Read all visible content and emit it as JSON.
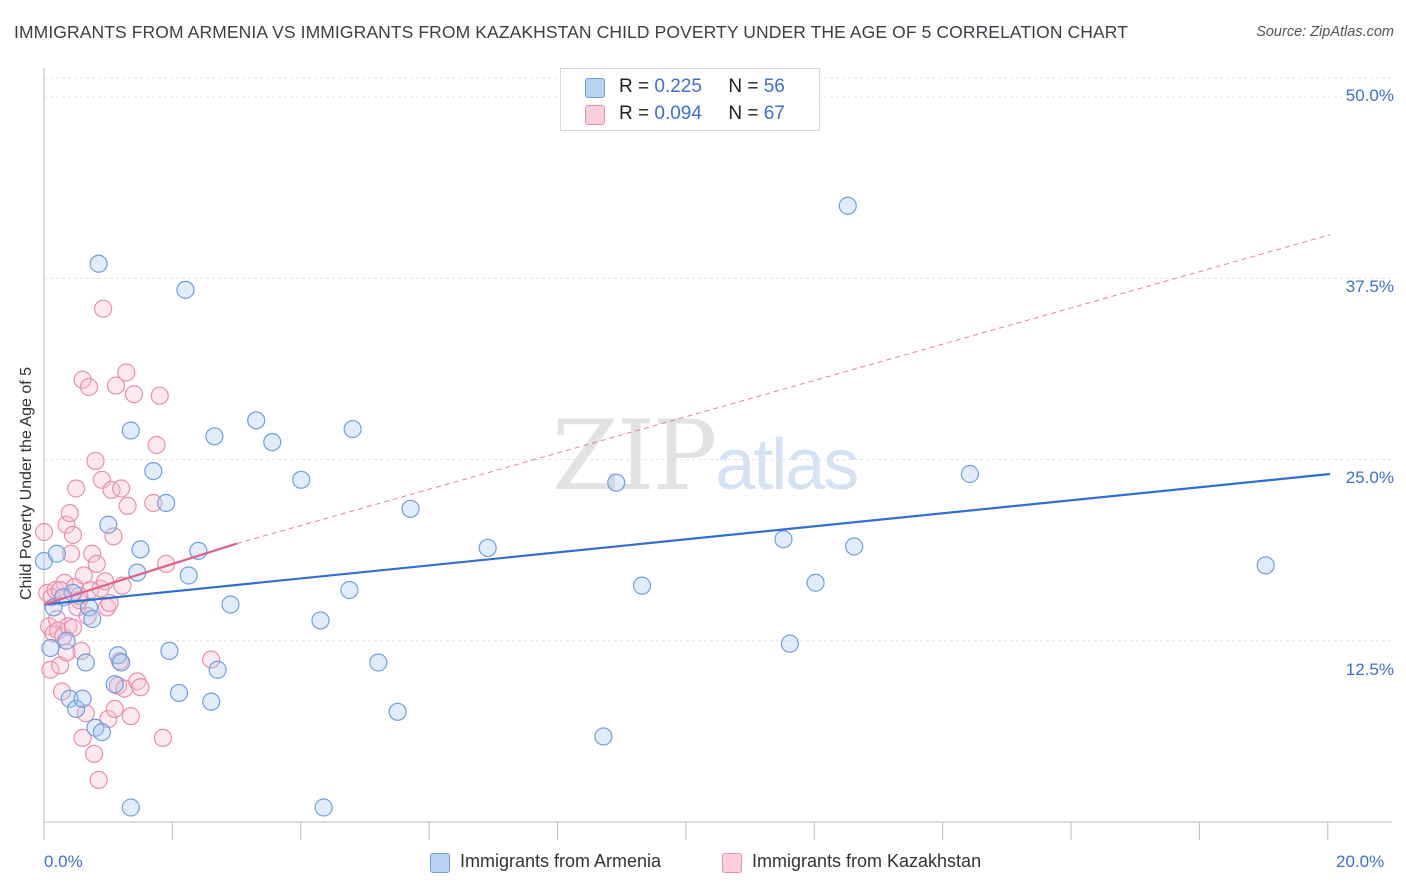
{
  "title": "IMMIGRANTS FROM ARMENIA VS IMMIGRANTS FROM KAZAKHSTAN CHILD POVERTY UNDER THE AGE OF 5 CORRELATION CHART",
  "source": "Source: ZipAtlas.com",
  "watermark": {
    "zip": "ZIP",
    "atlas": "atlas"
  },
  "legend": {
    "r_label": "R =",
    "n_label": "N =",
    "armenia": {
      "r": "0.225",
      "n": "56"
    },
    "kazakhstan": {
      "r": "0.094",
      "n": "67"
    }
  },
  "bottom_legend": {
    "armenia": "Immigrants from Armenia",
    "kazakhstan": "Immigrants from Kazakhstan"
  },
  "colors": {
    "armenia_fill": "#a9c8f0",
    "armenia_stroke": "#6f9fe0",
    "armenia_line": "#2f6fce",
    "kazakhstan_fill": "#f6bfd0",
    "kazakhstan_stroke": "#ea8fab",
    "kazakhstan_line": "#e0608a",
    "tick_text": "#3d6fd1",
    "grid": "#e4e4e4"
  },
  "chart_data": {
    "type": "scatter",
    "title": "IMMIGRANTS FROM ARMENIA VS IMMIGRANTS FROM KAZAKHSTAN CHILD POVERTY UNDER THE AGE OF 5 CORRELATION CHART",
    "xlabel": "",
    "ylabel": "Child Poverty Under the Age of 5",
    "xlim": [
      0,
      20
    ],
    "ylim": [
      0,
      52
    ],
    "x_tick_labels": [
      "0.0%",
      "20.0%"
    ],
    "y_ticks": [
      12.5,
      25.0,
      37.5,
      50.0
    ],
    "y_tick_labels": [
      "12.5%",
      "25.0%",
      "37.5%",
      "50.0%"
    ],
    "series": [
      {
        "name": "Immigrants from Armenia",
        "r": 0.225,
        "n": 56,
        "trend": {
          "x0": 0,
          "y0": 15.0,
          "x1": 20,
          "y1": 24.0
        },
        "points": [
          [
            0.0,
            18.0
          ],
          [
            0.15,
            14.8
          ],
          [
            0.2,
            18.5
          ],
          [
            0.1,
            12.0
          ],
          [
            0.35,
            12.5
          ],
          [
            0.4,
            8.5
          ],
          [
            0.45,
            15.8
          ],
          [
            0.5,
            7.8
          ],
          [
            0.6,
            8.5
          ],
          [
            0.65,
            11.0
          ],
          [
            0.7,
            14.8
          ],
          [
            0.75,
            14.0
          ],
          [
            0.8,
            6.5
          ],
          [
            0.85,
            38.5
          ],
          [
            0.9,
            6.2
          ],
          [
            1.0,
            20.5
          ],
          [
            1.1,
            9.5
          ],
          [
            1.15,
            11.5
          ],
          [
            1.2,
            11.0
          ],
          [
            1.35,
            27.0
          ],
          [
            1.45,
            17.2
          ],
          [
            1.5,
            18.8
          ],
          [
            1.7,
            24.2
          ],
          [
            1.9,
            22.0
          ],
          [
            1.95,
            11.8
          ],
          [
            2.1,
            8.9
          ],
          [
            2.2,
            36.7
          ],
          [
            2.25,
            17.0
          ],
          [
            2.4,
            18.7
          ],
          [
            2.6,
            8.3
          ],
          [
            2.65,
            26.6
          ],
          [
            2.7,
            10.5
          ],
          [
            2.9,
            15.0
          ],
          [
            3.3,
            27.7
          ],
          [
            3.55,
            26.2
          ],
          [
            4.0,
            23.6
          ],
          [
            4.3,
            13.9
          ],
          [
            4.35,
            1.0
          ],
          [
            4.75,
            16.0
          ],
          [
            4.8,
            27.1
          ],
          [
            5.2,
            11.0
          ],
          [
            5.5,
            7.6
          ],
          [
            5.7,
            21.6
          ],
          [
            6.9,
            18.9
          ],
          [
            8.7,
            5.9
          ],
          [
            8.9,
            23.4
          ],
          [
            9.3,
            16.3
          ],
          [
            11.5,
            19.5
          ],
          [
            11.6,
            12.3
          ],
          [
            12.0,
            16.5
          ],
          [
            12.5,
            42.5
          ],
          [
            12.6,
            19.0
          ],
          [
            14.4,
            24.0
          ],
          [
            1.35,
            1.0
          ],
          [
            0.3,
            15.5
          ],
          [
            19.0,
            17.7
          ]
        ]
      },
      {
        "name": "Immigrants from Kazakhstan",
        "r": 0.094,
        "n": 67,
        "trend": {
          "x0": 0,
          "y0": 15.0,
          "x1": 3.0,
          "y1": 19.2
        },
        "trend_extension": {
          "x0": 3.0,
          "y0": 19.2,
          "x1": 20.0,
          "y1": 40.5
        },
        "points": [
          [
            0.0,
            20.0
          ],
          [
            0.05,
            15.8
          ],
          [
            0.08,
            13.5
          ],
          [
            0.1,
            10.5
          ],
          [
            0.12,
            15.5
          ],
          [
            0.15,
            13.0
          ],
          [
            0.18,
            16.0
          ],
          [
            0.2,
            14.0
          ],
          [
            0.22,
            13.2
          ],
          [
            0.25,
            10.8
          ],
          [
            0.28,
            9.0
          ],
          [
            0.3,
            12.8
          ],
          [
            0.32,
            16.5
          ],
          [
            0.35,
            20.5
          ],
          [
            0.38,
            13.5
          ],
          [
            0.4,
            21.3
          ],
          [
            0.42,
            18.5
          ],
          [
            0.45,
            19.8
          ],
          [
            0.48,
            16.2
          ],
          [
            0.5,
            23.0
          ],
          [
            0.52,
            14.8
          ],
          [
            0.55,
            15.3
          ],
          [
            0.58,
            11.8
          ],
          [
            0.6,
            30.5
          ],
          [
            0.62,
            17.0
          ],
          [
            0.65,
            7.5
          ],
          [
            0.68,
            14.2
          ],
          [
            0.7,
            30.0
          ],
          [
            0.72,
            16.0
          ],
          [
            0.75,
            18.5
          ],
          [
            0.78,
            4.7
          ],
          [
            0.8,
            24.9
          ],
          [
            0.82,
            17.8
          ],
          [
            0.85,
            2.9
          ],
          [
            0.88,
            16.1
          ],
          [
            0.9,
            23.6
          ],
          [
            0.92,
            35.4
          ],
          [
            0.95,
            16.6
          ],
          [
            0.98,
            14.8
          ],
          [
            1.0,
            7.1
          ],
          [
            1.02,
            15.1
          ],
          [
            1.05,
            22.9
          ],
          [
            1.08,
            19.7
          ],
          [
            1.1,
            7.8
          ],
          [
            1.12,
            30.1
          ],
          [
            1.15,
            9.4
          ],
          [
            1.18,
            11.1
          ],
          [
            1.2,
            23.0
          ],
          [
            1.22,
            16.3
          ],
          [
            1.25,
            9.2
          ],
          [
            1.28,
            31.0
          ],
          [
            1.3,
            21.8
          ],
          [
            1.35,
            7.3
          ],
          [
            1.4,
            29.5
          ],
          [
            1.45,
            9.7
          ],
          [
            1.5,
            9.3
          ],
          [
            1.7,
            22.0
          ],
          [
            1.75,
            26.0
          ],
          [
            1.8,
            29.4
          ],
          [
            1.85,
            5.8
          ],
          [
            1.9,
            17.8
          ],
          [
            2.6,
            11.2
          ],
          [
            0.6,
            5.8
          ],
          [
            0.55,
            15.6
          ],
          [
            0.35,
            11.7
          ],
          [
            0.25,
            16.0
          ],
          [
            0.45,
            13.4
          ]
        ]
      }
    ]
  }
}
